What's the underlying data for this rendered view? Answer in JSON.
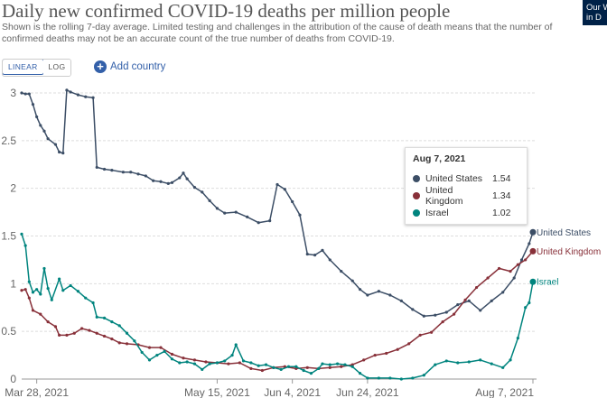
{
  "header": {
    "title": "Daily new confirmed COVID-19 deaths per million people",
    "subtitle": "Shown is the rolling 7-day average. Limited testing and challenges in the attribution of the cause of death means that the number of confirmed deaths may not be an accurate count of the true number of deaths from COVID-19.",
    "logo_text": "Our W\nin D"
  },
  "controls": {
    "linear_label": "LINEAR",
    "log_label": "LOG",
    "add_country_label": "Add country",
    "add_icon": "plus-circle-icon"
  },
  "tooltip": {
    "date": "Aug 7, 2021",
    "rows": [
      {
        "name": "United States",
        "value": "1.54",
        "color": "#3c4e66"
      },
      {
        "name": "United Kingdom",
        "value": "1.34",
        "color": "#883039"
      },
      {
        "name": "Israel",
        "value": "1.02",
        "color": "#00847e"
      }
    ]
  },
  "chart_data": {
    "type": "line",
    "title": "Daily new confirmed COVID-19 deaths per million people",
    "xlabel": "",
    "ylabel": "",
    "y_ticks": [
      0,
      0.5,
      1,
      1.5,
      2,
      2.5,
      3
    ],
    "y_tick_labels": [
      "0",
      "0.5",
      "1",
      "1.5",
      "2",
      "2.5",
      "3"
    ],
    "ylim": [
      0,
      3
    ],
    "x_start": "2021-03-24",
    "x_end": "2021-08-07",
    "x_ticks": [
      {
        "date": "2021-03-28",
        "label": "Mar 28, 2021"
      },
      {
        "date": "2021-05-15",
        "label": "May 15, 2021"
      },
      {
        "date": "2021-06-04",
        "label": "Jun 4, 2021"
      },
      {
        "date": "2021-06-24",
        "label": "Jun 24, 2021"
      },
      {
        "date": "2021-08-07",
        "label": "Aug 7, 2021"
      }
    ],
    "grid": "horizontal-dashed",
    "legend": "line-end-labels",
    "series": [
      {
        "name": "United States",
        "color": "#3c4e66",
        "points": [
          [
            "2021-03-24",
            3.0
          ],
          [
            "2021-03-25",
            2.99
          ],
          [
            "2021-03-26",
            2.99
          ],
          [
            "2021-03-27",
            2.88
          ],
          [
            "2021-03-28",
            2.75
          ],
          [
            "2021-03-29",
            2.66
          ],
          [
            "2021-03-30",
            2.6
          ],
          [
            "2021-03-31",
            2.52
          ],
          [
            "2021-04-02",
            2.46
          ],
          [
            "2021-04-03",
            2.38
          ],
          [
            "2021-04-04",
            2.37
          ],
          [
            "2021-04-05",
            3.03
          ],
          [
            "2021-04-06",
            3.01
          ],
          [
            "2021-04-08",
            2.98
          ],
          [
            "2021-04-10",
            2.96
          ],
          [
            "2021-04-12",
            2.95
          ],
          [
            "2021-04-13",
            2.22
          ],
          [
            "2021-04-15",
            2.2
          ],
          [
            "2021-04-17",
            2.19
          ],
          [
            "2021-04-20",
            2.17
          ],
          [
            "2021-04-22",
            2.17
          ],
          [
            "2021-04-24",
            2.15
          ],
          [
            "2021-04-26",
            2.13
          ],
          [
            "2021-04-28",
            2.08
          ],
          [
            "2021-04-30",
            2.07
          ],
          [
            "2021-05-02",
            2.05
          ],
          [
            "2021-05-03",
            2.06
          ],
          [
            "2021-05-05",
            2.11
          ],
          [
            "2021-05-06",
            2.16
          ],
          [
            "2021-05-07",
            2.1
          ],
          [
            "2021-05-09",
            2.01
          ],
          [
            "2021-05-11",
            1.96
          ],
          [
            "2021-05-13",
            1.87
          ],
          [
            "2021-05-15",
            1.79
          ],
          [
            "2021-05-17",
            1.74
          ],
          [
            "2021-05-20",
            1.75
          ],
          [
            "2021-05-23",
            1.7
          ],
          [
            "2021-05-26",
            1.64
          ],
          [
            "2021-05-29",
            1.66
          ],
          [
            "2021-05-31",
            2.04
          ],
          [
            "2021-06-02",
            1.99
          ],
          [
            "2021-06-04",
            1.86
          ],
          [
            "2021-06-06",
            1.72
          ],
          [
            "2021-06-08",
            1.31
          ],
          [
            "2021-06-10",
            1.3
          ],
          [
            "2021-06-12",
            1.35
          ],
          [
            "2021-06-14",
            1.25
          ],
          [
            "2021-06-17",
            1.13
          ],
          [
            "2021-06-20",
            1.03
          ],
          [
            "2021-06-22",
            0.94
          ],
          [
            "2021-06-24",
            0.88
          ],
          [
            "2021-06-27",
            0.92
          ],
          [
            "2021-06-30",
            0.88
          ],
          [
            "2021-07-03",
            0.82
          ],
          [
            "2021-07-06",
            0.73
          ],
          [
            "2021-07-09",
            0.66
          ],
          [
            "2021-07-12",
            0.67
          ],
          [
            "2021-07-15",
            0.7
          ],
          [
            "2021-07-18",
            0.78
          ],
          [
            "2021-07-21",
            0.82
          ],
          [
            "2021-07-24",
            0.72
          ],
          [
            "2021-07-27",
            0.82
          ],
          [
            "2021-07-30",
            0.91
          ],
          [
            "2021-08-02",
            1.06
          ],
          [
            "2021-08-04",
            1.25
          ],
          [
            "2021-08-06",
            1.42
          ],
          [
            "2021-08-07",
            1.54
          ]
        ]
      },
      {
        "name": "United Kingdom",
        "color": "#883039",
        "points": [
          [
            "2021-03-24",
            0.93
          ],
          [
            "2021-03-25",
            0.94
          ],
          [
            "2021-03-26",
            0.85
          ],
          [
            "2021-03-27",
            0.72
          ],
          [
            "2021-03-29",
            0.68
          ],
          [
            "2021-03-31",
            0.6
          ],
          [
            "2021-04-02",
            0.55
          ],
          [
            "2021-04-03",
            0.46
          ],
          [
            "2021-04-05",
            0.46
          ],
          [
            "2021-04-07",
            0.48
          ],
          [
            "2021-04-09",
            0.53
          ],
          [
            "2021-04-11",
            0.51
          ],
          [
            "2021-04-13",
            0.48
          ],
          [
            "2021-04-15",
            0.45
          ],
          [
            "2021-04-17",
            0.42
          ],
          [
            "2021-04-19",
            0.38
          ],
          [
            "2021-04-21",
            0.37
          ],
          [
            "2021-04-24",
            0.36
          ],
          [
            "2021-04-27",
            0.33
          ],
          [
            "2021-04-30",
            0.33
          ],
          [
            "2021-05-03",
            0.26
          ],
          [
            "2021-05-06",
            0.22
          ],
          [
            "2021-05-09",
            0.2
          ],
          [
            "2021-05-12",
            0.18
          ],
          [
            "2021-05-15",
            0.17
          ],
          [
            "2021-05-18",
            0.16
          ],
          [
            "2021-05-21",
            0.17
          ],
          [
            "2021-05-24",
            0.11
          ],
          [
            "2021-05-27",
            0.09
          ],
          [
            "2021-05-30",
            0.12
          ],
          [
            "2021-06-02",
            0.13
          ],
          [
            "2021-06-05",
            0.11
          ],
          [
            "2021-06-08",
            0.12
          ],
          [
            "2021-06-11",
            0.11
          ],
          [
            "2021-06-14",
            0.12
          ],
          [
            "2021-06-17",
            0.13
          ],
          [
            "2021-06-20",
            0.15
          ],
          [
            "2021-06-23",
            0.2
          ],
          [
            "2021-06-26",
            0.25
          ],
          [
            "2021-06-29",
            0.27
          ],
          [
            "2021-07-02",
            0.31
          ],
          [
            "2021-07-05",
            0.37
          ],
          [
            "2021-07-08",
            0.46
          ],
          [
            "2021-07-11",
            0.49
          ],
          [
            "2021-07-14",
            0.6
          ],
          [
            "2021-07-17",
            0.68
          ],
          [
            "2021-07-20",
            0.83
          ],
          [
            "2021-07-23",
            0.96
          ],
          [
            "2021-07-26",
            1.06
          ],
          [
            "2021-07-29",
            1.16
          ],
          [
            "2021-08-01",
            1.13
          ],
          [
            "2021-08-03",
            1.2
          ],
          [
            "2021-08-05",
            1.25
          ],
          [
            "2021-08-07",
            1.34
          ]
        ]
      },
      {
        "name": "Israel",
        "color": "#00847e",
        "points": [
          [
            "2021-03-24",
            1.52
          ],
          [
            "2021-03-25",
            1.4
          ],
          [
            "2021-03-26",
            1.02
          ],
          [
            "2021-03-27",
            0.91
          ],
          [
            "2021-03-28",
            0.94
          ],
          [
            "2021-03-29",
            0.89
          ],
          [
            "2021-03-30",
            1.16
          ],
          [
            "2021-03-31",
            0.95
          ],
          [
            "2021-04-01",
            0.83
          ],
          [
            "2021-04-03",
            1.05
          ],
          [
            "2021-04-04",
            0.93
          ],
          [
            "2021-04-06",
            0.98
          ],
          [
            "2021-04-08",
            0.92
          ],
          [
            "2021-04-10",
            0.85
          ],
          [
            "2021-04-12",
            0.8
          ],
          [
            "2021-04-13",
            0.65
          ],
          [
            "2021-04-15",
            0.64
          ],
          [
            "2021-04-17",
            0.6
          ],
          [
            "2021-04-19",
            0.56
          ],
          [
            "2021-04-21",
            0.48
          ],
          [
            "2021-04-23",
            0.4
          ],
          [
            "2021-04-25",
            0.28
          ],
          [
            "2021-04-27",
            0.2
          ],
          [
            "2021-04-29",
            0.25
          ],
          [
            "2021-05-01",
            0.29
          ],
          [
            "2021-05-03",
            0.21
          ],
          [
            "2021-05-05",
            0.17
          ],
          [
            "2021-05-07",
            0.18
          ],
          [
            "2021-05-09",
            0.16
          ],
          [
            "2021-05-11",
            0.1
          ],
          [
            "2021-05-13",
            0.16
          ],
          [
            "2021-05-15",
            0.17
          ],
          [
            "2021-05-17",
            0.19
          ],
          [
            "2021-05-19",
            0.25
          ],
          [
            "2021-05-20",
            0.36
          ],
          [
            "2021-05-22",
            0.19
          ],
          [
            "2021-05-24",
            0.17
          ],
          [
            "2021-05-26",
            0.14
          ],
          [
            "2021-05-28",
            0.15
          ],
          [
            "2021-05-30",
            0.12
          ],
          [
            "2021-06-01",
            0.1
          ],
          [
            "2021-06-03",
            0.13
          ],
          [
            "2021-06-05",
            0.13
          ],
          [
            "2021-06-07",
            0.09
          ],
          [
            "2021-06-09",
            0.06
          ],
          [
            "2021-06-11",
            0.11
          ],
          [
            "2021-06-12",
            0.16
          ],
          [
            "2021-06-14",
            0.15
          ],
          [
            "2021-06-16",
            0.16
          ],
          [
            "2021-06-18",
            0.15
          ],
          [
            "2021-06-20",
            0.13
          ],
          [
            "2021-06-22",
            0.06
          ],
          [
            "2021-06-24",
            0.01
          ],
          [
            "2021-06-27",
            0.01
          ],
          [
            "2021-06-30",
            0.01
          ],
          [
            "2021-07-03",
            0.0
          ],
          [
            "2021-07-06",
            0.01
          ],
          [
            "2021-07-09",
            0.04
          ],
          [
            "2021-07-12",
            0.15
          ],
          [
            "2021-07-15",
            0.19
          ],
          [
            "2021-07-18",
            0.17
          ],
          [
            "2021-07-21",
            0.18
          ],
          [
            "2021-07-24",
            0.2
          ],
          [
            "2021-07-27",
            0.16
          ],
          [
            "2021-07-30",
            0.12
          ],
          [
            "2021-08-01",
            0.2
          ],
          [
            "2021-08-03",
            0.43
          ],
          [
            "2021-08-05",
            0.75
          ],
          [
            "2021-08-06",
            0.8
          ],
          [
            "2021-08-07",
            1.02
          ]
        ]
      }
    ]
  }
}
